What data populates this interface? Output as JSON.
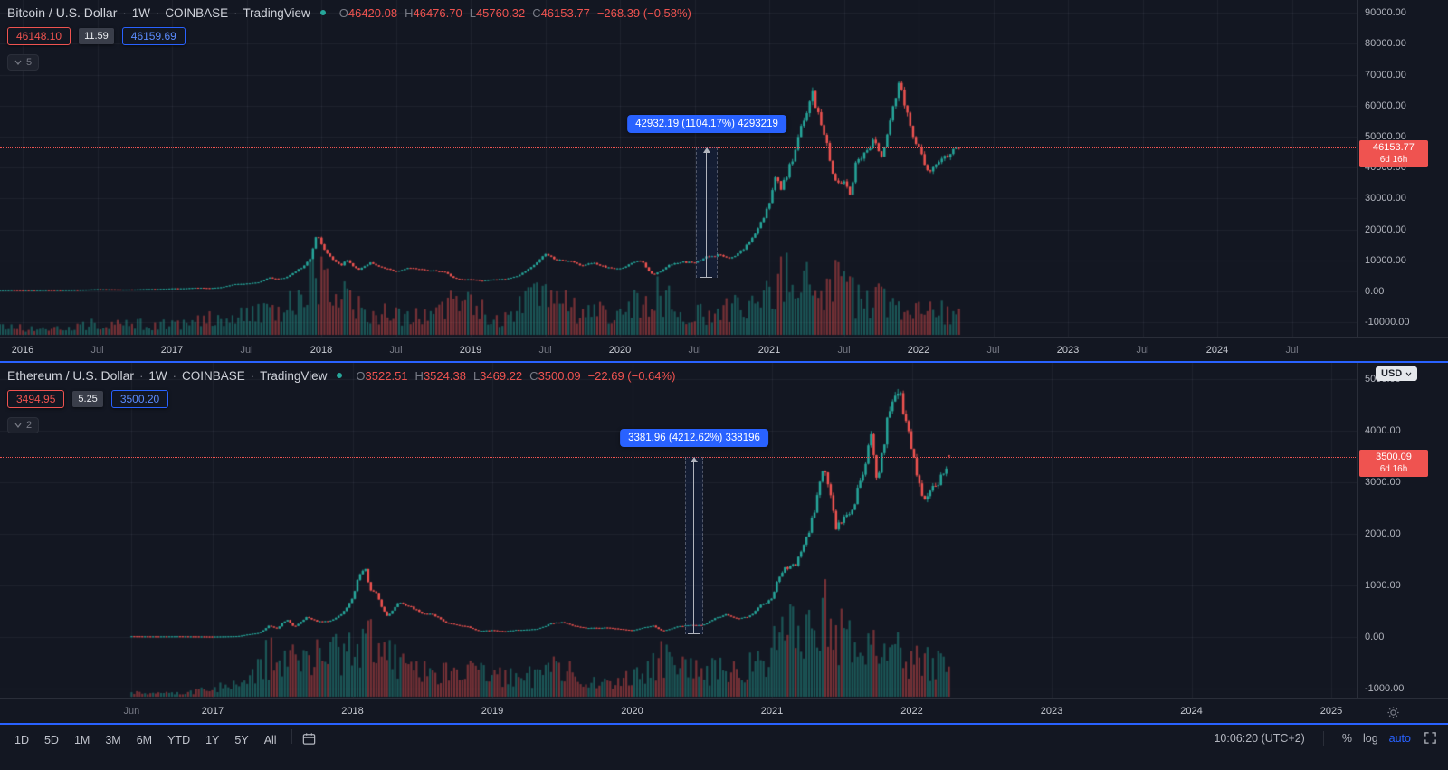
{
  "colors": {
    "up": "#26a69a",
    "down": "#ef5350",
    "accent_blue": "#2962ff",
    "bg": "#131722",
    "vol_up": "rgba(38,166,154,0.45)",
    "vol_down": "rgba(239,83,80,0.45)",
    "grid": "rgba(240,243,250,0.055)"
  },
  "axis": {
    "currency": "USD"
  },
  "btc": {
    "symbol": {
      "title": "Bitcoin / U.S. Dollar",
      "interval": "1W",
      "exchange": "COINBASE",
      "provider": "TradingView",
      "sep": "·"
    },
    "ohlc": [
      {
        "k": "O",
        "v": "46420.08"
      },
      {
        "k": "H",
        "v": "46476.70"
      },
      {
        "k": "L",
        "v": "45760.32"
      },
      {
        "k": "C",
        "v": "46153.77"
      }
    ],
    "change": "−268.39 (−0.58%)",
    "bid": "46148.10",
    "spread": "11.59",
    "ask": "46159.69",
    "collapse_count": "5",
    "measure_label": "42932.19 (1104.17%) 4293219",
    "price_badge": {
      "price": "46153.77",
      "countdown": "6d 16h"
    },
    "chart_data": {
      "type": "candlestick",
      "timeframe": "1W",
      "pair": "BTC/USD",
      "last_price": 46153.77,
      "last_candle": {
        "open": 46420.08,
        "high": 46476.7,
        "low": 45760.32,
        "close": 46153.77
      },
      "y_ticks": [
        [
          90000,
          "90000.00"
        ],
        [
          80000,
          "80000.00"
        ],
        [
          70000,
          "70000.00"
        ],
        [
          60000,
          "60000.00"
        ],
        [
          50000,
          "50000.00"
        ],
        [
          40000,
          "40000.00"
        ],
        [
          30000,
          "30000.00"
        ],
        [
          20000,
          "20000.00"
        ],
        [
          10000,
          "10000.00"
        ],
        [
          0,
          "0.00"
        ],
        [
          -10000,
          "-10000.00"
        ]
      ],
      "x_ticks": [
        [
          2016,
          "2016",
          1
        ],
        [
          2016.5,
          "Jul",
          0
        ],
        [
          2017,
          "2017",
          1
        ],
        [
          2017.5,
          "Jul",
          0
        ],
        [
          2018,
          "2018",
          1
        ],
        [
          2018.5,
          "Jul",
          0
        ],
        [
          2019,
          "2019",
          1
        ],
        [
          2019.5,
          "Jul",
          0
        ],
        [
          2020,
          "2020",
          1
        ],
        [
          2020.5,
          "Jul",
          0
        ],
        [
          2021,
          "2021",
          1
        ],
        [
          2021.5,
          "Jul",
          0
        ],
        [
          2022,
          "2022",
          1
        ],
        [
          2022.5,
          "Jul",
          0
        ],
        [
          2023,
          "2023",
          1
        ],
        [
          2023.5,
          "Jul",
          0
        ],
        [
          2024,
          "2024",
          1
        ],
        [
          2024.5,
          "Jul",
          0
        ]
      ],
      "price_anchors": [
        [
          2015.8,
          310
        ],
        [
          2015.92,
          430
        ],
        [
          2016.08,
          370
        ],
        [
          2016.17,
          437
        ],
        [
          2016.25,
          416
        ],
        [
          2016.33,
          448
        ],
        [
          2016.42,
          531
        ],
        [
          2016.5,
          670
        ],
        [
          2016.58,
          624
        ],
        [
          2016.67,
          575
        ],
        [
          2016.75,
          610
        ],
        [
          2016.83,
          700
        ],
        [
          2016.92,
          745
        ],
        [
          2017.0,
          960
        ],
        [
          2017.08,
          970
        ],
        [
          2017.17,
          1190
        ],
        [
          2017.25,
          1080
        ],
        [
          2017.33,
          1350
        ],
        [
          2017.42,
          2300
        ],
        [
          2017.5,
          2480
        ],
        [
          2017.58,
          2875
        ],
        [
          2017.65,
          4400
        ],
        [
          2017.7,
          4100
        ],
        [
          2017.75,
          4360
        ],
        [
          2017.83,
          6450
        ],
        [
          2017.92,
          9900
        ],
        [
          2017.97,
          18900
        ],
        [
          2018.02,
          13800
        ],
        [
          2018.08,
          10200
        ],
        [
          2018.13,
          8300
        ],
        [
          2018.17,
          10300
        ],
        [
          2018.25,
          6930
        ],
        [
          2018.33,
          9245
        ],
        [
          2018.42,
          7500
        ],
        [
          2018.5,
          6400
        ],
        [
          2018.58,
          7730
        ],
        [
          2018.67,
          7030
        ],
        [
          2018.75,
          6600
        ],
        [
          2018.83,
          6300
        ],
        [
          2018.9,
          4040
        ],
        [
          2019.0,
          3740
        ],
        [
          2019.08,
          3460
        ],
        [
          2019.17,
          3855
        ],
        [
          2019.25,
          4100
        ],
        [
          2019.33,
          5320
        ],
        [
          2019.42,
          8560
        ],
        [
          2019.5,
          12300
        ],
        [
          2019.58,
          10080
        ],
        [
          2019.67,
          9630
        ],
        [
          2019.75,
          8300
        ],
        [
          2019.83,
          9150
        ],
        [
          2019.92,
          7560
        ],
        [
          2020.0,
          7190
        ],
        [
          2020.08,
          9350
        ],
        [
          2020.15,
          9900
        ],
        [
          2020.22,
          5300
        ],
        [
          2020.27,
          6400
        ],
        [
          2020.33,
          8620
        ],
        [
          2020.42,
          9450
        ],
        [
          2020.5,
          9140
        ],
        [
          2020.58,
          11350
        ],
        [
          2020.67,
          11650
        ],
        [
          2020.75,
          10780
        ],
        [
          2020.83,
          13800
        ],
        [
          2020.92,
          19700
        ],
        [
          2021.0,
          29000
        ],
        [
          2021.05,
          38000
        ],
        [
          2021.08,
          33100
        ],
        [
          2021.17,
          45200
        ],
        [
          2021.25,
          58800
        ],
        [
          2021.29,
          63500
        ],
        [
          2021.33,
          57750
        ],
        [
          2021.38,
          49000
        ],
        [
          2021.42,
          37300
        ],
        [
          2021.5,
          35040
        ],
        [
          2021.54,
          31800
        ],
        [
          2021.58,
          41550
        ],
        [
          2021.67,
          47150
        ],
        [
          2021.71,
          48800
        ],
        [
          2021.75,
          43800
        ],
        [
          2021.83,
          61300
        ],
        [
          2021.87,
          66900
        ],
        [
          2021.92,
          57000
        ],
        [
          2022.0,
          46200
        ],
        [
          2022.04,
          41500
        ],
        [
          2022.08,
          38480
        ],
        [
          2022.17,
          43200
        ],
        [
          2022.25,
          45540
        ],
        [
          2022.272,
          46150
        ]
      ],
      "volume_anchors": [
        [
          2015.85,
          0.12
        ],
        [
          2016.3,
          0.1
        ],
        [
          2016.5,
          0.18
        ],
        [
          2017.0,
          0.15
        ],
        [
          2017.4,
          0.3
        ],
        [
          2017.7,
          0.35
        ],
        [
          2017.95,
          0.85
        ],
        [
          2018.1,
          0.7
        ],
        [
          2018.3,
          0.4
        ],
        [
          2018.6,
          0.3
        ],
        [
          2018.9,
          0.5
        ],
        [
          2019.2,
          0.25
        ],
        [
          2019.45,
          0.6
        ],
        [
          2019.7,
          0.4
        ],
        [
          2020.0,
          0.3
        ],
        [
          2020.22,
          0.65
        ],
        [
          2020.5,
          0.3
        ],
        [
          2020.9,
          0.45
        ],
        [
          2021.05,
          0.95
        ],
        [
          2021.2,
          0.8
        ],
        [
          2021.4,
          0.9
        ],
        [
          2021.55,
          0.6
        ],
        [
          2021.8,
          0.5
        ],
        [
          2022.0,
          0.4
        ],
        [
          2022.272,
          0.3
        ]
      ]
    }
  },
  "eth": {
    "symbol": {
      "title": "Ethereum / U.S. Dollar",
      "interval": "1W",
      "exchange": "COINBASE",
      "provider": "TradingView",
      "sep": "·"
    },
    "ohlc": [
      {
        "k": "O",
        "v": "3522.51"
      },
      {
        "k": "H",
        "v": "3524.38"
      },
      {
        "k": "L",
        "v": "3469.22"
      },
      {
        "k": "C",
        "v": "3500.09"
      }
    ],
    "change": "−22.69 (−0.64%)",
    "bid": "3494.95",
    "spread": "5.25",
    "ask": "3500.20",
    "collapse_count": "2",
    "measure_label": "3381.96 (4212.62%) 338196",
    "price_badge": {
      "price": "3500.09",
      "countdown": "6d 16h"
    },
    "chart_data": {
      "type": "candlestick",
      "timeframe": "1W",
      "pair": "ETH/USD",
      "last_price": 3500.09,
      "last_candle": {
        "open": 3522.51,
        "high": 3524.38,
        "low": 3469.22,
        "close": 3500.09
      },
      "y_ticks": [
        [
          5000,
          "5000.00"
        ],
        [
          4000,
          "4000.00"
        ],
        [
          3000,
          "3000.00"
        ],
        [
          2000,
          "2000.00"
        ],
        [
          1000,
          "1000.00"
        ],
        [
          0,
          "0.00"
        ],
        [
          -1000,
          "-1000.00"
        ]
      ],
      "x_ticks": [
        [
          2016.42,
          "Jun",
          0
        ],
        [
          2017,
          "2017",
          1
        ],
        [
          2018,
          "2018",
          1
        ],
        [
          2019,
          "2019",
          1
        ],
        [
          2020,
          "2020",
          1
        ],
        [
          2021,
          "2021",
          1
        ],
        [
          2022,
          "2022",
          1
        ],
        [
          2023,
          "2023",
          1
        ],
        [
          2024,
          "2024",
          1
        ],
        [
          2025,
          "2025",
          1
        ]
      ],
      "price_anchors": [
        [
          2016.42,
          14
        ],
        [
          2016.5,
          12
        ],
        [
          2016.58,
          11
        ],
        [
          2016.67,
          11.5
        ],
        [
          2016.75,
          13
        ],
        [
          2016.83,
          10.8
        ],
        [
          2016.92,
          9.6
        ],
        [
          2017.0,
          8
        ],
        [
          2017.08,
          10.7
        ],
        [
          2017.17,
          16
        ],
        [
          2017.25,
          50
        ],
        [
          2017.33,
          80
        ],
        [
          2017.4,
          225
        ],
        [
          2017.46,
          160
        ],
        [
          2017.5,
          280
        ],
        [
          2017.54,
          335
        ],
        [
          2017.58,
          200
        ],
        [
          2017.67,
          385
        ],
        [
          2017.75,
          300
        ],
        [
          2017.83,
          305
        ],
        [
          2017.92,
          445
        ],
        [
          2018.0,
          750
        ],
        [
          2018.04,
          1150
        ],
        [
          2018.09,
          1360
        ],
        [
          2018.13,
          900
        ],
        [
          2018.17,
          855
        ],
        [
          2018.25,
          395
        ],
        [
          2018.33,
          670
        ],
        [
          2018.42,
          580
        ],
        [
          2018.5,
          455
        ],
        [
          2018.58,
          435
        ],
        [
          2018.67,
          283
        ],
        [
          2018.75,
          233
        ],
        [
          2018.83,
          197
        ],
        [
          2018.9,
          118
        ],
        [
          2019.0,
          133
        ],
        [
          2019.08,
          107
        ],
        [
          2019.17,
          137
        ],
        [
          2019.25,
          142
        ],
        [
          2019.33,
          162
        ],
        [
          2019.42,
          268
        ],
        [
          2019.5,
          290
        ],
        [
          2019.58,
          218
        ],
        [
          2019.67,
          172
        ],
        [
          2019.75,
          180
        ],
        [
          2019.83,
          182
        ],
        [
          2019.92,
          152
        ],
        [
          2020.0,
          129
        ],
        [
          2020.08,
          180
        ],
        [
          2020.15,
          223
        ],
        [
          2020.22,
          118
        ],
        [
          2020.33,
          206
        ],
        [
          2020.42,
          231
        ],
        [
          2020.5,
          226
        ],
        [
          2020.58,
          346
        ],
        [
          2020.67,
          434
        ],
        [
          2020.75,
          360
        ],
        [
          2020.83,
          386
        ],
        [
          2020.92,
          615
        ],
        [
          2021.0,
          730
        ],
        [
          2021.04,
          1100
        ],
        [
          2021.08,
          1310
        ],
        [
          2021.17,
          1420
        ],
        [
          2021.25,
          1920
        ],
        [
          2021.33,
          2770
        ],
        [
          2021.37,
          3450
        ],
        [
          2021.42,
          2710
        ],
        [
          2021.46,
          2100
        ],
        [
          2021.5,
          2270
        ],
        [
          2021.58,
          2530
        ],
        [
          2021.67,
          3430
        ],
        [
          2021.71,
          3900
        ],
        [
          2021.75,
          3000
        ],
        [
          2021.83,
          4290
        ],
        [
          2021.88,
          4700
        ],
        [
          2021.92,
          4630
        ],
        [
          2022.0,
          3680
        ],
        [
          2022.04,
          3100
        ],
        [
          2022.08,
          2690
        ],
        [
          2022.17,
          2920
        ],
        [
          2022.25,
          3280
        ],
        [
          2022.272,
          3500
        ]
      ],
      "volume_anchors": [
        [
          2016.42,
          0.05
        ],
        [
          2016.8,
          0.04
        ],
        [
          2017.2,
          0.15
        ],
        [
          2017.45,
          0.55
        ],
        [
          2017.6,
          0.4
        ],
        [
          2017.95,
          0.6
        ],
        [
          2018.1,
          0.65
        ],
        [
          2018.3,
          0.45
        ],
        [
          2018.6,
          0.25
        ],
        [
          2018.9,
          0.35
        ],
        [
          2019.2,
          0.2
        ],
        [
          2019.45,
          0.35
        ],
        [
          2019.7,
          0.2
        ],
        [
          2020.0,
          0.2
        ],
        [
          2020.22,
          0.45
        ],
        [
          2020.6,
          0.3
        ],
        [
          2020.9,
          0.4
        ],
        [
          2021.05,
          0.8
        ],
        [
          2021.2,
          0.65
        ],
        [
          2021.4,
          0.95
        ],
        [
          2021.6,
          0.5
        ],
        [
          2021.8,
          0.55
        ],
        [
          2022.0,
          0.45
        ],
        [
          2022.272,
          0.35
        ]
      ]
    }
  },
  "toolbar": {
    "ranges": [
      "1D",
      "5D",
      "1M",
      "3M",
      "6M",
      "YTD",
      "1Y",
      "5Y",
      "All"
    ],
    "clock": "10:06:20 (UTC+2)",
    "percent": "%",
    "log": "log",
    "auto": "auto"
  }
}
